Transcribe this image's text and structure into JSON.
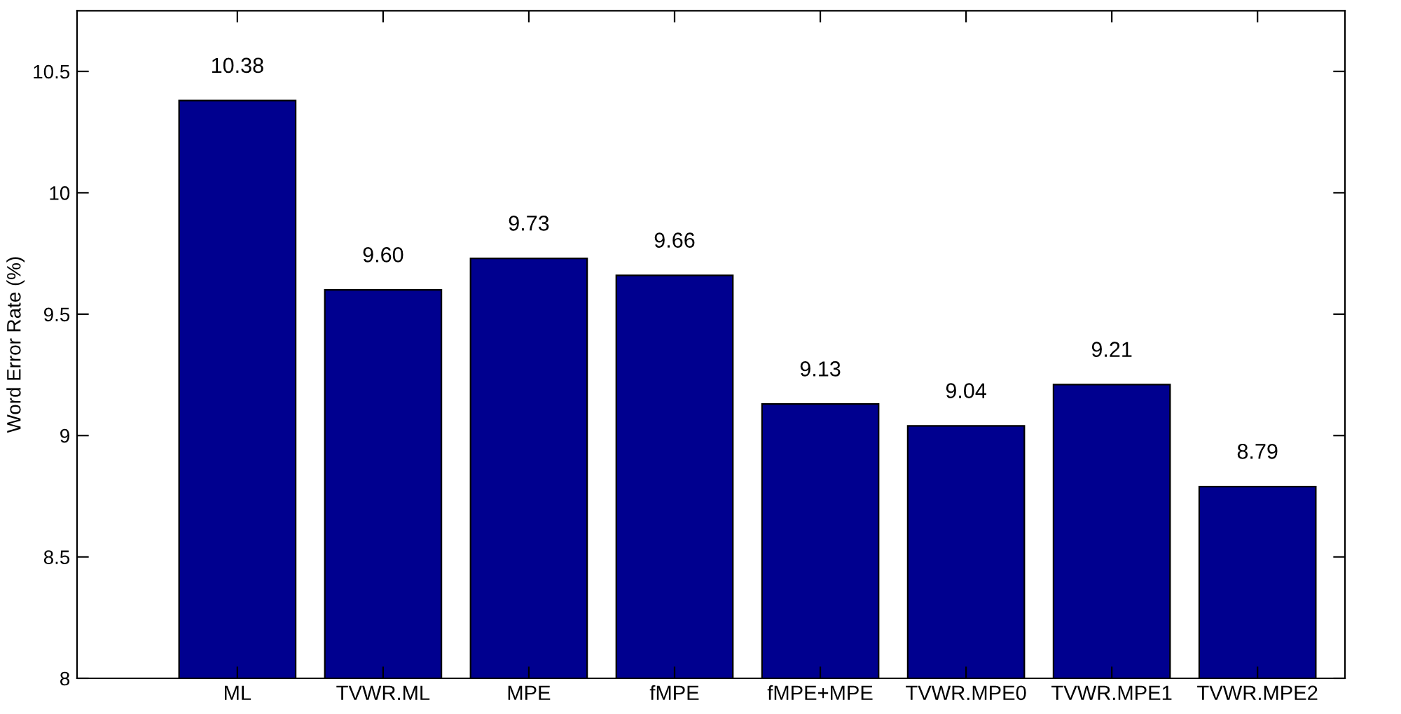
{
  "chart_data": {
    "type": "bar",
    "ylabel": "Word Error Rate (%)",
    "categories": [
      "ML",
      "TVWR.ML",
      "MPE",
      "fMPE",
      "fMPE+MPE",
      "TVWR.MPE0",
      "TVWR.MPE1",
      "TVWR.MPE2"
    ],
    "values": [
      10.38,
      9.6,
      9.73,
      9.66,
      9.13,
      9.04,
      9.21,
      8.79
    ],
    "value_labels": [
      "10.38",
      "9.60",
      "9.73",
      "9.66",
      "9.13",
      "9.04",
      "9.21",
      "8.79"
    ],
    "color": "#00008f",
    "ylim": [
      8,
      10.75
    ],
    "yticks": [
      8,
      8.5,
      9,
      9.5,
      10,
      10.5
    ],
    "grid": false
  }
}
